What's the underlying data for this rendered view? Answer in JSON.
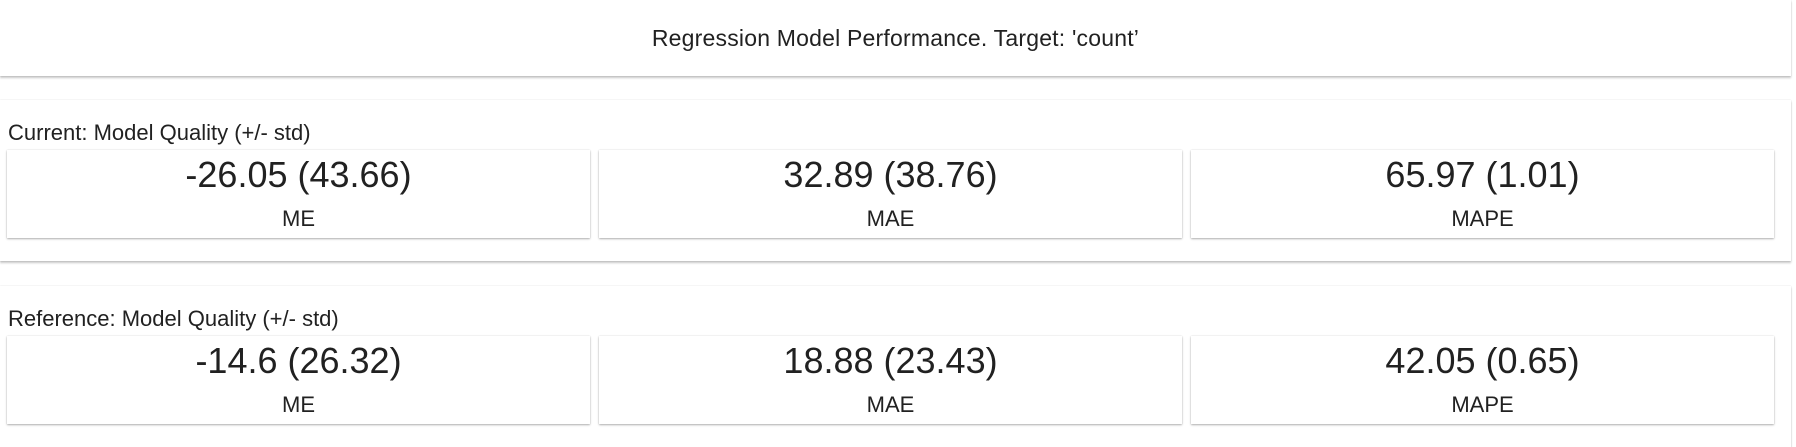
{
  "title": "Regression Model Performance. Target: 'count’",
  "sections": [
    {
      "label": "Current: Model Quality (+/- std)",
      "metrics": [
        {
          "value": "-26.05 (43.66)",
          "name": "ME"
        },
        {
          "value": "32.89 (38.76)",
          "name": "MAE"
        },
        {
          "value": "65.97 (1.01)",
          "name": "MAPE"
        }
      ]
    },
    {
      "label": "Reference: Model Quality (+/- std)",
      "metrics": [
        {
          "value": "-14.6 (26.32)",
          "name": "ME"
        },
        {
          "value": "18.88 (23.43)",
          "name": "MAE"
        },
        {
          "value": "42.05 (0.65)",
          "name": "MAPE"
        }
      ]
    }
  ]
}
